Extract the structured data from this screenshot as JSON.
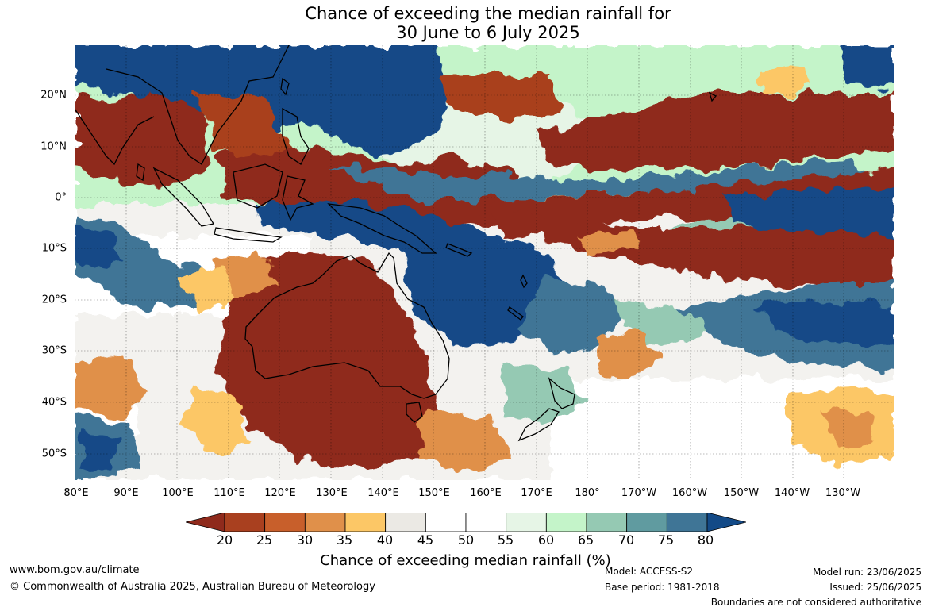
{
  "title": {
    "line1": "Chance of exceeding the median rainfall for",
    "line2": "30 June to 6 July 2025"
  },
  "map": {
    "latitude_labels": [
      "20°N",
      "10°N",
      "0°",
      "10°S",
      "20°S",
      "30°S",
      "40°S",
      "50°S"
    ],
    "longitude_labels": [
      "80°E",
      "90°E",
      "100°E",
      "110°E",
      "120°E",
      "130°E",
      "140°E",
      "150°E",
      "160°E",
      "170°E",
      "180°",
      "170°W",
      "160°W",
      "150°W",
      "140°W",
      "130°W"
    ],
    "gridlines": true
  },
  "colorbar": {
    "ticks": [
      "20",
      "25",
      "30",
      "35",
      "40",
      "45",
      "50",
      "55",
      "60",
      "65",
      "70",
      "75",
      "80"
    ],
    "colors": [
      "#8f2a1c",
      "#a9401f",
      "#c85f2b",
      "#e0904a",
      "#fcc766",
      "#ebe9e4",
      "#ffffff",
      "#ffffff",
      "#e6f5e6",
      "#c4f4c9",
      "#95c9b3",
      "#609ba0",
      "#3f7596",
      "#134a87"
    ],
    "label": "Chance of exceeding median rainfall (%)",
    "extend": "both"
  },
  "footer": {
    "website": "www.bom.gov.au/climate",
    "copyright": "© Commonwealth of Australia 2025, Australian Bureau of Meteorology",
    "model": "Model: ACCESS-S2",
    "base_period": "Base period: 1981-2018",
    "model_run": "Model run: 23/06/2025",
    "issued": "Issued: 25/06/2025",
    "disclaimer": "Boundaries are not considered authoritative"
  }
}
